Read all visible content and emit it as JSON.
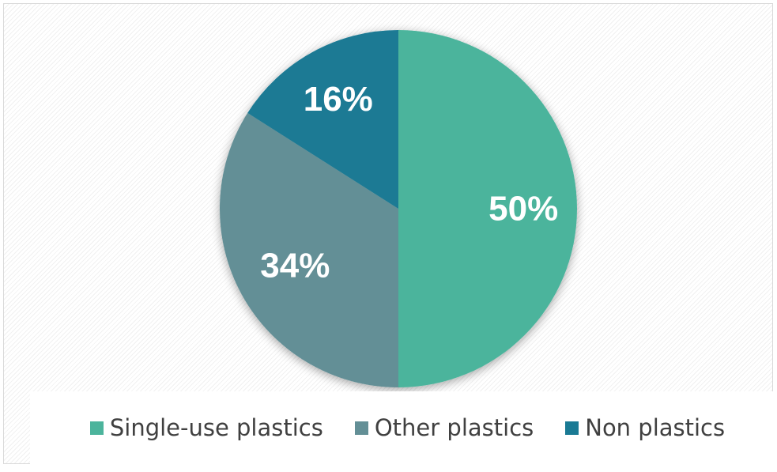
{
  "chart_data": {
    "type": "pie",
    "title": "",
    "slices": [
      {
        "label": "Single-use plastics",
        "value": 50,
        "display": "50%",
        "color": "#4cb49c"
      },
      {
        "label": "Other plastics",
        "value": 34,
        "display": "34%",
        "color": "#638f96"
      },
      {
        "label": "Non plastics",
        "value": 16,
        "display": "16%",
        "color": "#1a7a94"
      }
    ],
    "legend_position": "bottom"
  },
  "legend": {
    "items": [
      {
        "label": "Single-use plastics",
        "color": "#4cb49c"
      },
      {
        "label": "Other plastics",
        "color": "#638f96"
      },
      {
        "label": "Non plastics",
        "color": "#1a7a94"
      }
    ]
  }
}
